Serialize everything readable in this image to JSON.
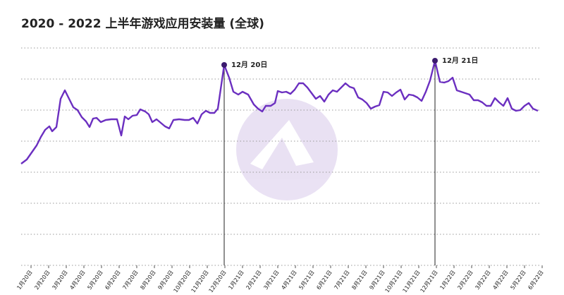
{
  "chart_data": {
    "type": "line",
    "title": "2020 - 2022 上半年游戏应用安装量 (全球)",
    "x": [
      -14,
      -6,
      1,
      8,
      14,
      20,
      26,
      30,
      36,
      42,
      48,
      54,
      60,
      66,
      72,
      78,
      83,
      88,
      93,
      99,
      106,
      114,
      122,
      128,
      133,
      138,
      144,
      150,
      155,
      162,
      167,
      172,
      178,
      184,
      190,
      196,
      202,
      210,
      218,
      224,
      230,
      236,
      242,
      248,
      254,
      260,
      265,
      274,
      281,
      287,
      294,
      300,
      308,
      316,
      322,
      328,
      333,
      340,
      346,
      350,
      356,
      362,
      368,
      374,
      380,
      386,
      392,
      398,
      404,
      410,
      416,
      422,
      428,
      434,
      440,
      446,
      452,
      458,
      464,
      470,
      476,
      482,
      488,
      494,
      500,
      506,
      512,
      518,
      524,
      530,
      536,
      542,
      548,
      554,
      560,
      566,
      573,
      580,
      586,
      592,
      598,
      604,
      610,
      616,
      622,
      628,
      634,
      640,
      646,
      652,
      658,
      664,
      670,
      676,
      682,
      688,
      694,
      700,
      706,
      712,
      719
    ],
    "series": [
      {
        "name": "游戏应用安装量",
        "color": "#6b2fc0",
        "values": [
          144,
          150,
          160,
          170,
          182,
          192,
          197,
          190,
          196,
          236,
          248,
          236,
          224,
          220,
          210,
          204,
          196,
          208,
          209,
          203,
          206,
          207,
          207,
          184,
          211,
          207,
          212,
          213,
          221,
          218,
          214,
          203,
          207,
          202,
          197,
          194,
          206,
          207,
          206,
          206,
          209,
          201,
          214,
          219,
          216,
          216,
          222,
          284,
          266,
          246,
          242,
          246,
          242,
          228,
          222,
          218,
          226,
          226,
          230,
          247,
          245,
          246,
          243,
          249,
          258,
          258,
          252,
          244,
          236,
          240,
          232,
          242,
          248,
          246,
          252,
          258,
          253,
          251,
          238,
          235,
          230,
          222,
          225,
          227,
          246,
          245,
          240,
          245,
          249,
          235,
          242,
          241,
          238,
          233,
          246,
          262,
          290,
          260,
          259,
          261,
          266,
          248,
          246,
          244,
          242,
          234,
          234,
          231,
          226,
          226,
          237,
          231,
          226,
          237,
          222,
          219,
          220,
          226,
          230,
          222,
          219
        ]
      }
    ],
    "xlim": [
      -14,
      726
    ],
    "ylim": [
      0,
      308
    ],
    "yticks": [
      0,
      44,
      88,
      132,
      176,
      220,
      264,
      308
    ],
    "grid": true,
    "xticks": [
      {
        "value": 0,
        "label": "1月20日"
      },
      {
        "value": 25,
        "label": "2月20日"
      },
      {
        "value": 50,
        "label": "3月20日"
      },
      {
        "value": 75,
        "label": "4月20日"
      },
      {
        "value": 100,
        "label": "5月20日"
      },
      {
        "value": 125,
        "label": "6月20日"
      },
      {
        "value": 150,
        "label": "7月20日"
      },
      {
        "value": 175,
        "label": "8月20日"
      },
      {
        "value": 200,
        "label": "9月20日"
      },
      {
        "value": 225,
        "label": "10月20日"
      },
      {
        "value": 250,
        "label": "11月20日"
      },
      {
        "value": 275,
        "label": "12月20日"
      },
      {
        "value": 300,
        "label": "1月21日"
      },
      {
        "value": 325,
        "label": "2月21日"
      },
      {
        "value": 350,
        "label": "3月21日"
      },
      {
        "value": 375,
        "label": "4月21日"
      },
      {
        "value": 400,
        "label": "5月21日"
      },
      {
        "value": 425,
        "label": "6月21日"
      },
      {
        "value": 450,
        "label": "7月21日"
      },
      {
        "value": 475,
        "label": "8月21日"
      },
      {
        "value": 500,
        "label": "9月21日"
      },
      {
        "value": 525,
        "label": "10月21日"
      },
      {
        "value": 550,
        "label": "11月21日"
      },
      {
        "value": 575,
        "label": "12月21日"
      },
      {
        "value": 600,
        "label": "1月22日"
      },
      {
        "value": 625,
        "label": "2月22日"
      },
      {
        "value": 650,
        "label": "3月22日"
      },
      {
        "value": 675,
        "label": "4月22日"
      },
      {
        "value": 700,
        "label": "5月22日"
      },
      {
        "value": 725,
        "label": "6月22日"
      }
    ],
    "annotations": [
      {
        "x": 274,
        "y": 284,
        "text": "12月 20日"
      },
      {
        "x": 573,
        "y": 290,
        "text": "12月 21日"
      }
    ]
  }
}
